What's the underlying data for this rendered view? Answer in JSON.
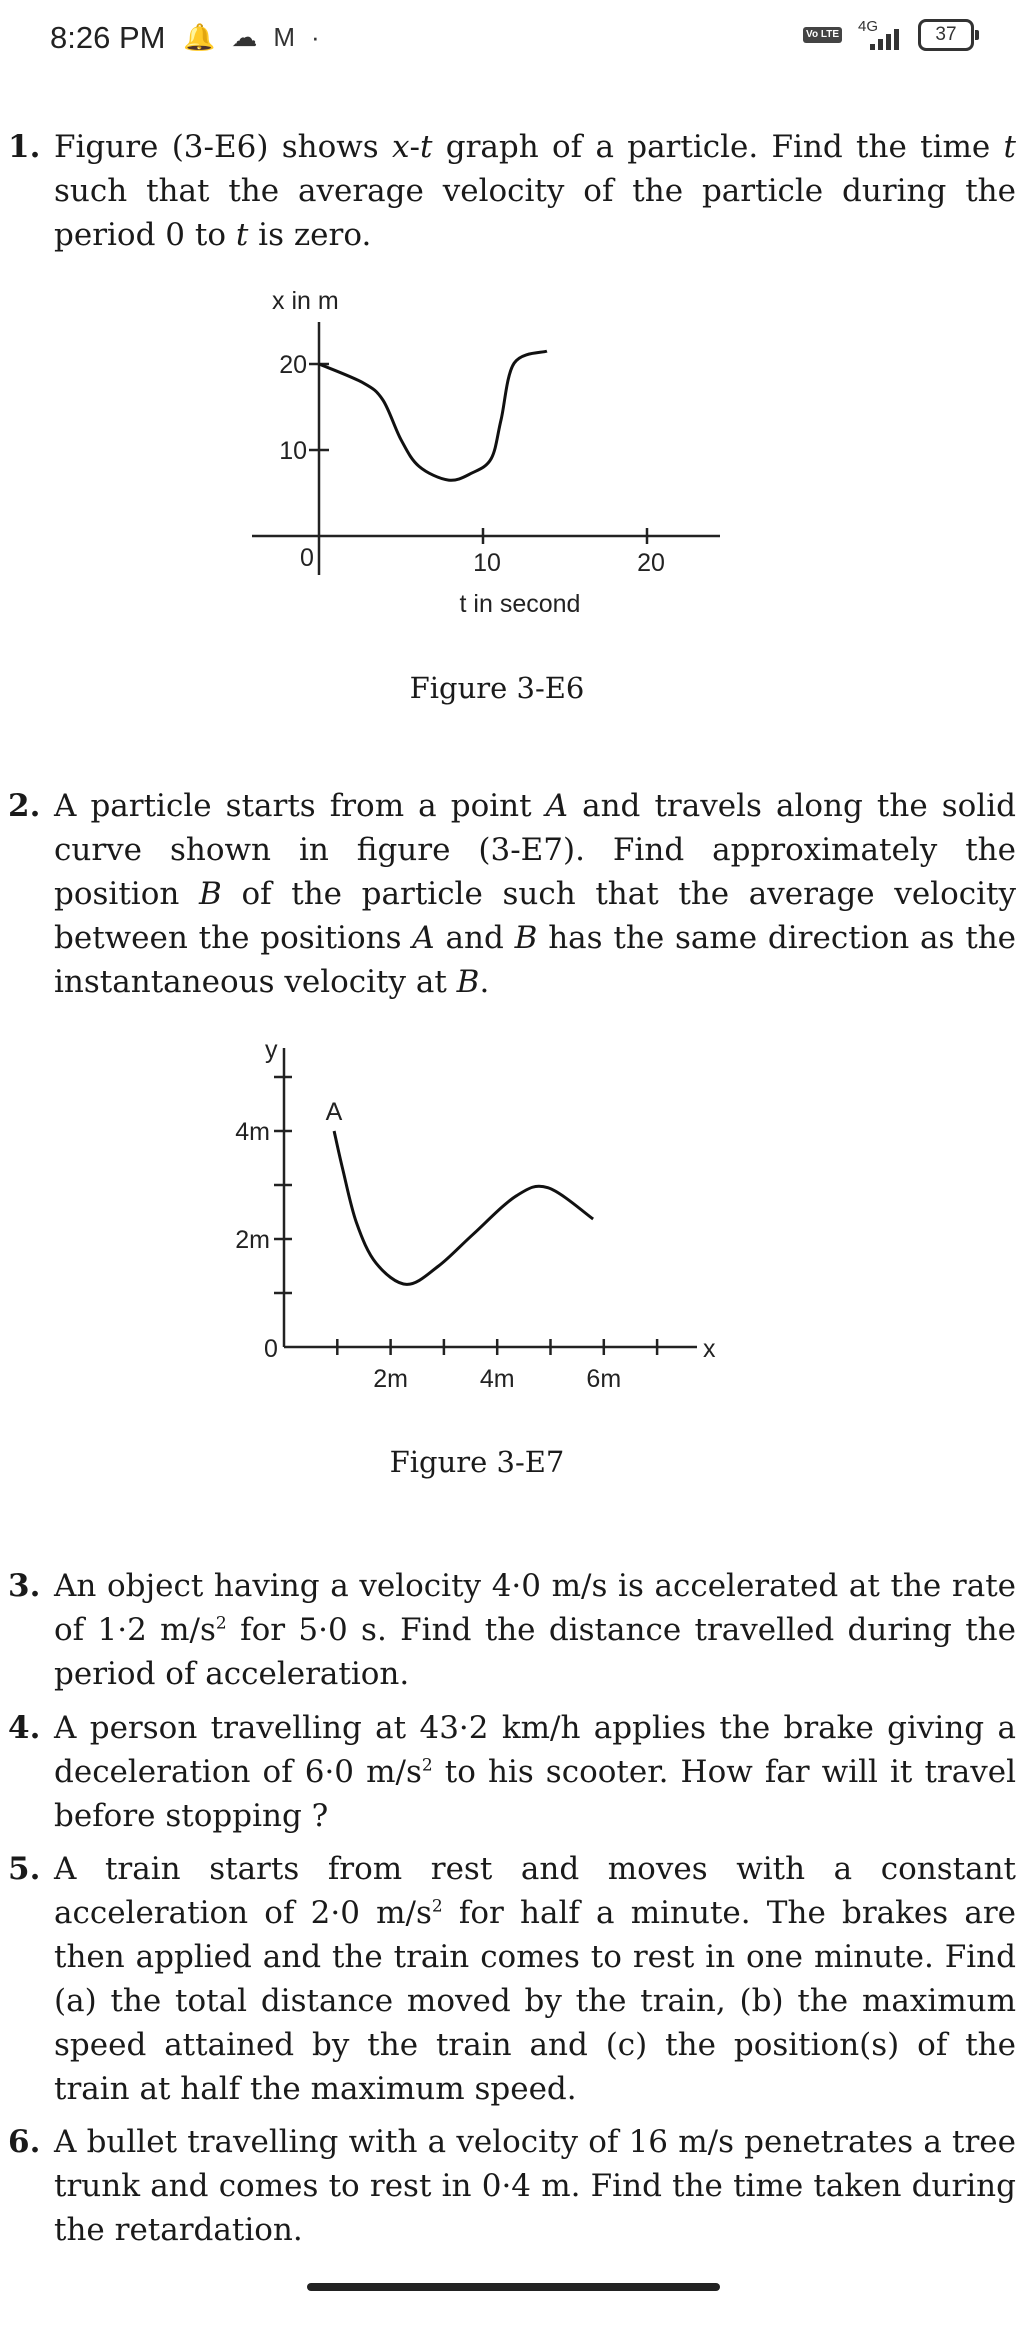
{
  "status_bar": {
    "time": "8:26 PM",
    "left_icons": [
      "notification-bell-icon",
      "cloud-icon",
      "gmail-icon",
      "dot-icon"
    ],
    "volte": "Vo LTE",
    "network": "4G",
    "battery": "37"
  },
  "questions": [
    {
      "number": "1.",
      "segments": [
        {
          "t": "Figure (3-E6) shows "
        },
        {
          "t": "x",
          "i": true
        },
        {
          "t": "-"
        },
        {
          "t": "t",
          "i": true
        },
        {
          "t": " graph of a particle. Find the time "
        },
        {
          "t": "t",
          "i": true
        },
        {
          "t": " such that the average velocity of the particle during the period 0 to "
        },
        {
          "t": "t",
          "i": true
        },
        {
          "t": " is zero."
        }
      ]
    },
    {
      "number": "2.",
      "segments": [
        {
          "t": "A particle starts from a point "
        },
        {
          "t": "A",
          "i": true
        },
        {
          "t": " and travels along the solid curve shown in figure (3-E7). Find approximately the position "
        },
        {
          "t": "B",
          "i": true
        },
        {
          "t": " of the particle such that the average velocity between the positions "
        },
        {
          "t": "A",
          "i": true
        },
        {
          "t": " and "
        },
        {
          "t": "B",
          "i": true
        },
        {
          "t": " has the same direction as the instantaneous velocity at "
        },
        {
          "t": "B",
          "i": true
        },
        {
          "t": "."
        }
      ]
    },
    {
      "number": "3.",
      "segments": [
        {
          "t": "An object having a velocity 4·0 m/s is accelerated at the rate of 1·2 m/s"
        },
        {
          "t": "2",
          "sup": true
        },
        {
          "t": " for 5·0 s. Find the distance travelled during the period of acceleration."
        }
      ]
    },
    {
      "number": "4.",
      "segments": [
        {
          "t": "A person travelling at 43·2 km/h applies the brake giving a deceleration of 6·0 m/s"
        },
        {
          "t": "2",
          "sup": true
        },
        {
          "t": " to his scooter. How far will it travel before stopping ?"
        }
      ]
    },
    {
      "number": "5.",
      "segments": [
        {
          "t": "A train starts from rest and moves with a constant acceleration of 2·0 m/s"
        },
        {
          "t": "2",
          "sup": true
        },
        {
          "t": " for half a minute. The brakes are then applied and the train comes to rest in one minute. Find (a) the total distance moved by the train, (b) the maximum speed attained by the train and (c) the position(s) of the train at half the maximum speed."
        }
      ]
    },
    {
      "number": "6.",
      "segments": [
        {
          "t": "A bullet travelling with a velocity of 16 m/s penetrates a tree trunk and comes to rest in 0·4 m. Find the time taken during the retardation."
        }
      ]
    }
  ],
  "chart_data": [
    {
      "type": "line",
      "caption": "Figure 3-E6",
      "xlabel": "t in second",
      "ylabel": "x in m",
      "origin_label": "0",
      "xticks": [
        10,
        20
      ],
      "xtick_labels": [
        "10",
        "20"
      ],
      "yticks": [
        10,
        20
      ],
      "ytick_labels": [
        "10",
        "20"
      ],
      "x": [
        0,
        2.7,
        3.9,
        5.0,
        6.1,
        7.9,
        9.3,
        10.5,
        11.1,
        11.9,
        13.9
      ],
      "y": [
        20,
        17.8,
        15.8,
        11.2,
        8.1,
        6.5,
        7.3,
        9.0,
        13.5,
        20.1,
        21.5
      ],
      "grid": false
    },
    {
      "type": "line",
      "caption": "Figure 3-E7",
      "xlabel": "x",
      "ylabel": "y",
      "origin_label": "0",
      "point_label": "A",
      "xticks": [
        1,
        2,
        3,
        4,
        5,
        6,
        7
      ],
      "xtick_labels": [
        "",
        "2m",
        "",
        "4m",
        "",
        "6m",
        ""
      ],
      "yticks": [
        1,
        2,
        3,
        4,
        5
      ],
      "ytick_labels": [
        "",
        "2m",
        "",
        "4m",
        ""
      ],
      "x": [
        0.94,
        1.1,
        1.36,
        1.73,
        2.3,
        2.9,
        3.54,
        4.36,
        4.95,
        5.8
      ],
      "y": [
        4.0,
        3.3,
        2.3,
        1.55,
        1.16,
        1.5,
        2.08,
        2.8,
        2.95,
        2.37
      ],
      "grid": false
    }
  ]
}
